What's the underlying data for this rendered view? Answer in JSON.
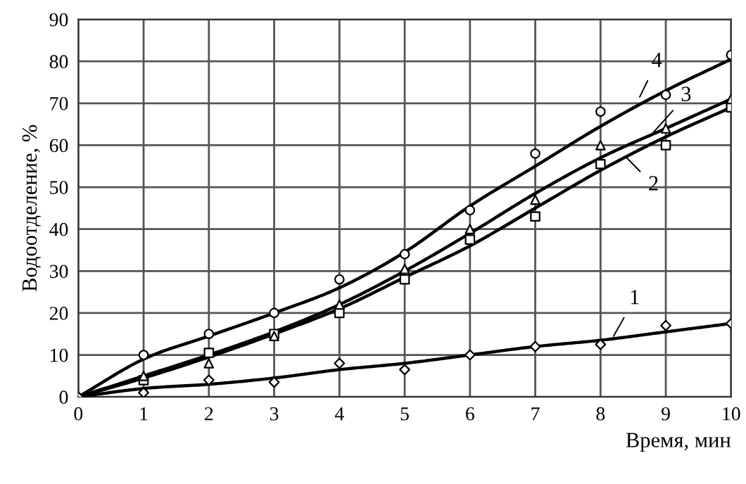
{
  "chart_data": {
    "type": "line",
    "xlabel": "Время, мин",
    "ylabel": "Водоотделение, %",
    "xlim": [
      0,
      10
    ],
    "ylim": [
      0,
      90
    ],
    "xticks": [
      0,
      1,
      2,
      3,
      4,
      5,
      6,
      7,
      8,
      9,
      10
    ],
    "yticks": [
      0,
      10,
      20,
      30,
      40,
      50,
      60,
      70,
      80,
      90
    ],
    "grid": true,
    "series": [
      {
        "type": "line",
        "color": "#000000",
        "marker": "none",
        "x": [
          0,
          1,
          2,
          3,
          4,
          5,
          6,
          7,
          8,
          9,
          10
        ],
        "values": [
          0,
          2,
          3,
          4.5,
          6.5,
          8,
          10,
          12,
          13.5,
          15.5,
          17.5
        ]
      },
      {
        "type": "line",
        "color": "#000000",
        "marker": "none",
        "x": [
          0,
          1,
          2,
          3,
          4,
          5,
          6,
          7,
          8,
          9,
          10
        ],
        "values": [
          0,
          4.5,
          9.5,
          15,
          21,
          28.5,
          36,
          45,
          54,
          62,
          69
        ]
      },
      {
        "type": "line",
        "color": "#000000",
        "marker": "none",
        "x": [
          0,
          1,
          2,
          3,
          4,
          5,
          6,
          7,
          8,
          9,
          10
        ],
        "values": [
          0,
          5,
          10,
          15.5,
          22,
          30,
          39,
          48.5,
          57,
          64,
          71
        ]
      },
      {
        "type": "line",
        "color": "#000000",
        "marker": "none",
        "x": [
          0,
          1,
          2,
          3,
          4,
          5,
          6,
          7,
          8,
          9,
          10
        ],
        "values": [
          0,
          9,
          14.5,
          20,
          26,
          34.5,
          45.5,
          55,
          64.5,
          73,
          80.5
        ]
      },
      {
        "type": "scatter",
        "color": "#000000",
        "marker": "diamond",
        "x": [
          0,
          1,
          2,
          3,
          4,
          5,
          6,
          7,
          8,
          9,
          10
        ],
        "values": [
          0,
          1,
          4,
          3.5,
          8,
          6.5,
          10,
          12,
          12.5,
          17,
          17.5
        ]
      },
      {
        "type": "scatter",
        "color": "#000000",
        "marker": "square",
        "x": [
          1,
          2,
          3,
          4,
          5,
          6,
          7,
          8,
          9,
          10
        ],
        "values": [
          4,
          10.5,
          15,
          20,
          28,
          37.5,
          43,
          55.5,
          60,
          69
        ]
      },
      {
        "type": "scatter",
        "color": "#000000",
        "marker": "triangle",
        "x": [
          1,
          2,
          3,
          4,
          5,
          6,
          7,
          8,
          9,
          10
        ],
        "values": [
          5,
          8,
          14.5,
          22,
          30.5,
          40,
          47,
          60,
          64,
          71
        ]
      },
      {
        "type": "scatter",
        "color": "#000000",
        "marker": "circle",
        "x": [
          1,
          2,
          3,
          4,
          5,
          6,
          7,
          8,
          9,
          10
        ],
        "values": [
          10,
          15,
          20,
          28,
          34,
          44.5,
          58,
          68,
          72,
          81.5
        ]
      }
    ],
    "annotations": [
      {
        "text": "1",
        "x": 8.2,
        "y": 14.5
      },
      {
        "text": "2",
        "x": 8.4,
        "y": 57
      },
      {
        "text": "3",
        "x": 8.75,
        "y": 62
      },
      {
        "text": "4",
        "x": 8.6,
        "y": 71.5
      }
    ]
  }
}
